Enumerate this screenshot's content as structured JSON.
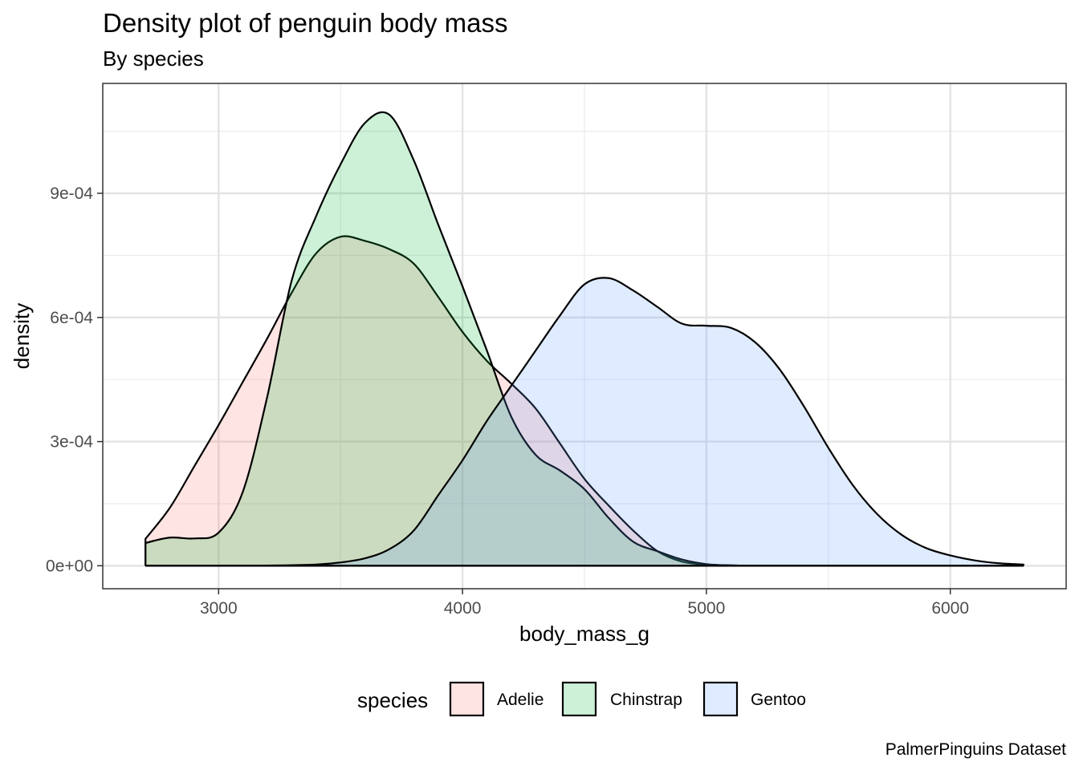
{
  "chart_data": {
    "type": "area",
    "title": "Density plot of penguin body mass",
    "subtitle": "By species",
    "xlabel": "body_mass_g",
    "ylabel": "density",
    "caption": "PalmerPinguins Dataset",
    "xlim": [
      2525,
      6475
    ],
    "ylim": [
      -5.55e-05,
      0.0011655
    ],
    "x_ticks": [
      3000,
      4000,
      5000,
      6000
    ],
    "x_tick_labels": [
      "3000",
      "4000",
      "5000",
      "6000"
    ],
    "y_ticks": [
      0,
      0.0003,
      0.0006,
      0.0009
    ],
    "y_tick_labels": [
      "0e+00",
      "3e-04",
      "6e-04",
      "9e-04"
    ],
    "grid": true,
    "legend": {
      "title": "species",
      "position": "bottom",
      "entries": [
        "Adelie",
        "Chinstrap",
        "Gentoo"
      ]
    },
    "colors": {
      "Adelie": "#F8766D",
      "Chinstrap": "#00BA38",
      "Gentoo": "#619CFF"
    },
    "fill_alpha": 0.2,
    "series": [
      {
        "name": "Adelie",
        "x": [
          2700,
          2800,
          2900,
          3000,
          3100,
          3200,
          3300,
          3400,
          3500,
          3600,
          3700,
          3800,
          3900,
          4000,
          4100,
          4200,
          4300,
          4400,
          4500,
          4600,
          4700,
          4800,
          4900,
          5000,
          5100,
          5200,
          5400,
          5600,
          5800,
          6000,
          6300
        ],
        "y": [
          6.5e-05,
          0.00014,
          0.00024,
          0.00034,
          0.000445,
          0.00055,
          0.00066,
          0.000755,
          0.000795,
          0.000785,
          0.000765,
          0.00073,
          0.00065,
          0.000565,
          0.000495,
          0.00044,
          0.00038,
          0.000295,
          0.00021,
          0.000145,
          8.5e-05,
          3.5e-05,
          1e-05,
          3e-06,
          1e-06,
          0,
          0,
          0,
          0,
          0,
          0
        ]
      },
      {
        "name": "Chinstrap",
        "x": [
          2700,
          2800,
          2900,
          3000,
          3100,
          3200,
          3300,
          3400,
          3500,
          3600,
          3700,
          3800,
          3900,
          4000,
          4100,
          4200,
          4300,
          4400,
          4500,
          4600,
          4700,
          4800,
          4900,
          5000,
          5100,
          5200,
          5400,
          5600,
          5800,
          6000,
          6300
        ],
        "y": [
          5.5e-05,
          6.8e-05,
          6.6e-05,
          8e-05,
          0.00018,
          0.00041,
          0.00069,
          0.000845,
          0.00097,
          0.00107,
          0.00109,
          0.00098,
          0.000825,
          0.000675,
          0.00052,
          0.00036,
          0.000268,
          0.00023,
          0.000185,
          0.000115,
          5.8e-05,
          3.5e-05,
          1.5e-05,
          4e-06,
          1e-06,
          0,
          0,
          0,
          0,
          0,
          0
        ]
      },
      {
        "name": "Gentoo",
        "x": [
          2700,
          3000,
          3200,
          3400,
          3500,
          3600,
          3700,
          3800,
          3900,
          4000,
          4100,
          4200,
          4300,
          4400,
          4500,
          4600,
          4700,
          4800,
          4900,
          5000,
          5100,
          5200,
          5300,
          5400,
          5500,
          5600,
          5700,
          5800,
          5900,
          6000,
          6100,
          6200,
          6300
        ],
        "y": [
          0,
          0,
          5e-07,
          3e-06,
          8e-06,
          1.8e-05,
          4e-05,
          8.5e-05,
          0.00017,
          0.000255,
          0.00035,
          0.000435,
          0.00052,
          0.000605,
          0.00068,
          0.000695,
          0.000665,
          0.000625,
          0.000585,
          0.00058,
          0.000575,
          0.00054,
          0.000475,
          0.000385,
          0.000285,
          0.000195,
          0.000125,
          7.5e-05,
          4.3e-05,
          2.5e-05,
          1.3e-05,
          6e-06,
          3e-06
        ]
      }
    ]
  }
}
